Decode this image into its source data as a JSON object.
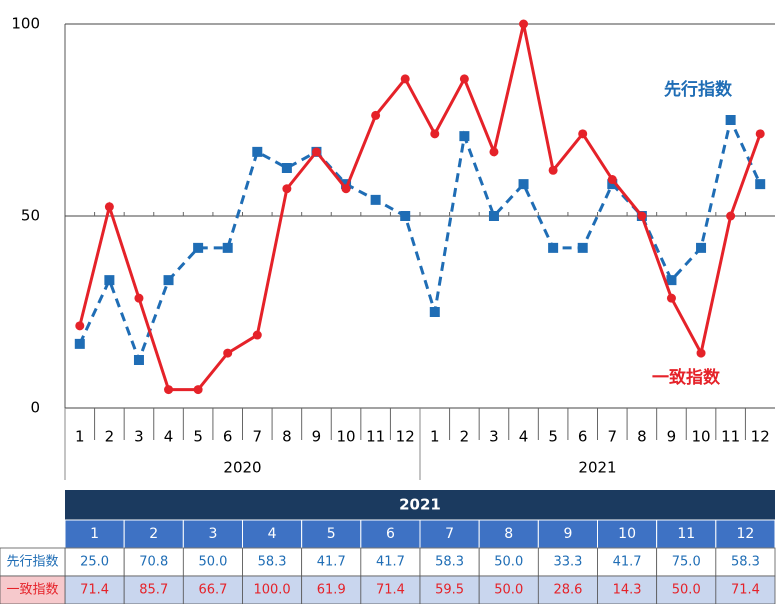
{
  "chart_data": {
    "type": "line",
    "categories": [
      "1",
      "2",
      "3",
      "4",
      "5",
      "6",
      "7",
      "8",
      "9",
      "10",
      "11",
      "12",
      "1",
      "2",
      "3",
      "4",
      "5",
      "6",
      "7",
      "8",
      "9",
      "10",
      "11",
      "12"
    ],
    "groups": [
      "2020",
      "2021"
    ],
    "ylim": [
      0,
      100
    ],
    "yticks": [
      0,
      50,
      100
    ],
    "grid": true,
    "series": [
      {
        "name": "先行指数",
        "color": "#1f6db5",
        "dash": true,
        "marker": "square",
        "values": [
          16.7,
          33.3,
          12.5,
          33.3,
          41.7,
          41.7,
          66.7,
          62.5,
          66.7,
          58.3,
          54.2,
          50.0,
          25.0,
          70.8,
          50.0,
          58.3,
          41.7,
          41.7,
          58.3,
          50.0,
          33.3,
          41.7,
          75.0,
          58.3
        ],
        "value_labels": [
          null,
          null,
          null,
          null,
          null,
          null,
          null,
          null,
          null,
          null,
          null,
          null,
          "25.0",
          "70.8",
          "50.0",
          "58.3",
          "41.7",
          "41.7",
          "58.3",
          "50.0",
          "33.3",
          "41.7",
          "75.0",
          "58.3"
        ]
      },
      {
        "name": "一致指数",
        "color": "#e52229",
        "dash": false,
        "marker": "circle",
        "values": [
          21.4,
          52.4,
          28.6,
          4.8,
          4.8,
          14.3,
          19.0,
          57.1,
          66.7,
          57.1,
          76.2,
          85.7,
          71.4,
          85.7,
          66.7,
          100.0,
          61.9,
          71.4,
          59.5,
          50.0,
          28.6,
          14.3,
          50.0,
          71.4
        ],
        "value_labels": [
          null,
          null,
          null,
          null,
          null,
          null,
          null,
          null,
          null,
          null,
          null,
          null,
          "71.4",
          "85.7",
          "66.7",
          "100.0",
          "61.9",
          "71.4",
          "59.5",
          "50.0",
          "28.6",
          "14.3",
          "50.0",
          "71.4"
        ]
      }
    ]
  }
}
